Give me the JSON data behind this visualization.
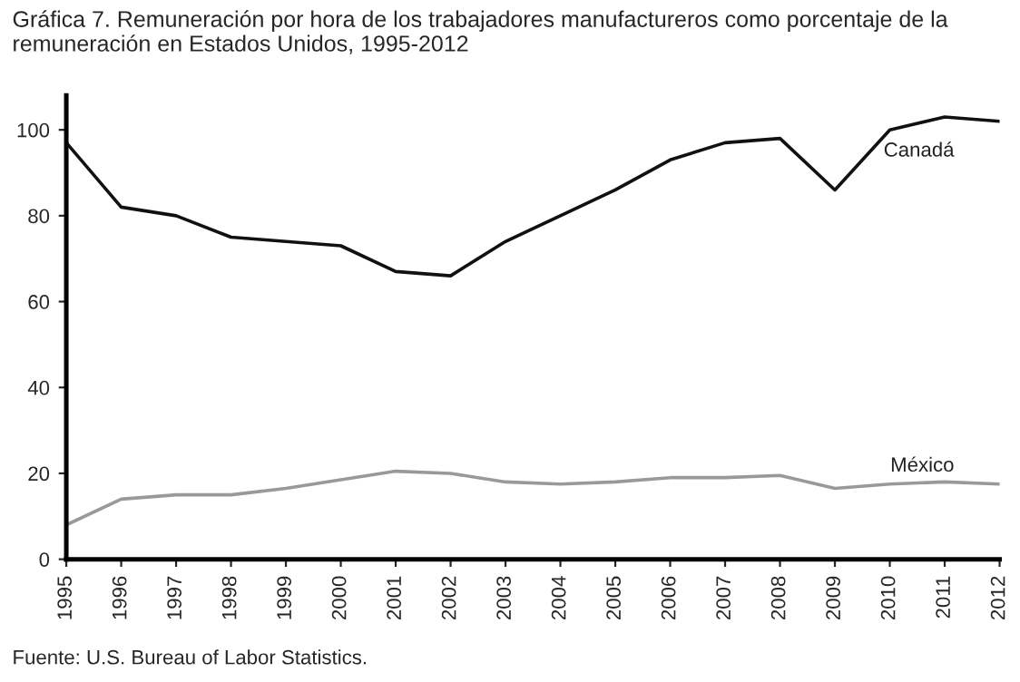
{
  "chart_data": {
    "type": "line",
    "title": "Gráfica 7. Remuneración por hora de los trabajadores manufactureros como porcentaje de la remuneración en Estados Unidos, 1995-2012",
    "x": [
      1995,
      1996,
      1997,
      1998,
      1999,
      2000,
      2001,
      2002,
      2003,
      2004,
      2005,
      2006,
      2007,
      2008,
      2009,
      2010,
      2011,
      2012
    ],
    "series": [
      {
        "name": "Canadá",
        "color": "#111111",
        "values": [
          97,
          82,
          80,
          75,
          74,
          73,
          67,
          66,
          74,
          80,
          86,
          93,
          97,
          98,
          86,
          100,
          103,
          102
        ]
      },
      {
        "name": "México",
        "color": "#999999",
        "values": [
          8,
          14,
          15,
          15,
          16.5,
          18.5,
          20.5,
          20,
          18,
          17.5,
          18,
          19,
          19,
          19.5,
          16.5,
          17.5,
          18,
          17.5
        ]
      }
    ],
    "xlim": [
      1995,
      2012
    ],
    "xticks": [
      1995,
      1996,
      1997,
      1998,
      1999,
      2000,
      2001,
      2002,
      2003,
      2004,
      2005,
      2006,
      2007,
      2008,
      2009,
      2010,
      2011,
      2012
    ],
    "ylim": [
      0,
      108
    ],
    "yticks": [
      0,
      20,
      40,
      60,
      80,
      100
    ],
    "grid": false,
    "legend": false,
    "marker": "none",
    "line_style": "solid",
    "annotations": [
      "Fuente: U.S. Bureau of Labor Statistics."
    ]
  }
}
